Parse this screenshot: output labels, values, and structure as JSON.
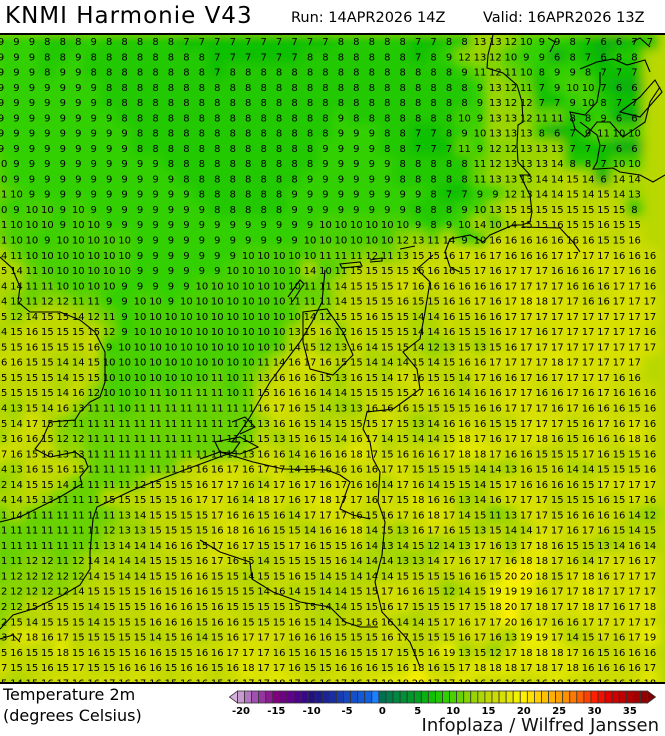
{
  "header": {
    "title": "KNMI Harmonie V43",
    "run": "Run: 14APR2026 14Z",
    "valid": "Valid: 16APR2026 13Z"
  },
  "map": {
    "field": "Temperature 2m",
    "watermark": "Infoplaza / Wilfred Janssen",
    "rows": [
      "9 9 9 8 8 8 9 8 8 8 8 8 7 7 7 7 7 7 7 7 7 7 8 8 8 8 8 7 7 8 8 13 13 12 10 9 9 8 7 6 6 7 7",
      "9 9 9 8 8 9 8 8 8 8 8 8 8 8 7 7 7 7 7 7 8 8 8 8 8 8 8 7 8 9 12 13 12 10 9 9 6 8 7 6 8 8",
      "9 9 9 8 9 9 8 8 8 8 8 8 8 8 7 8 8 8 8 8 8 8 8 8 8 8 8 8 8 8 9 11 12 11 10 8 9 9 8 7 7 7",
      "9 9 9 9 9 9 9 8 8 8 8 8 8 8 8 8 8 8 8 8 8 8 8 8 8 8 8 8 8 8 8 9 13 12 11 7 9 10 10 7 6 6",
      "9 9 9 9 9 9 9 8 8 8 8 8 8 8 8 8 8 8 8 8 8 8 8 8 8 8 8 8 8 8 8 9 13 12 12 7 7 9 10 8 7 7",
      "9 9 9 9 9 9 9 9 8 8 8 8 8 8 8 8 8 8 8 8 8 8 9 8 8 8 8 8 8 8 10 9 13 13 12 11 11 8 8 9 6 6",
      "9 9 9 9 9 9 9 9 9 8 8 8 8 8 8 8 8 8 8 8 8 8 9 9 9 8 8 7 7 8 9 10 13 13 13 8 6 7 9 11 10 10",
      "9 9 9 9 9 9 9 9 9 8 8 8 8 8 8 8 8 8 8 8 8 9 9 9 9 8 8 7 7 7 11 9 12 12 13 13 13 7 7 7 6 6",
      "10 9 9 9 9 9 9 9 9 9 9 8 8 8 8 8 8 8 8 8 8 9 9 9 9 9 8 8 8 8 8 11 12 13 13 13 14 8 8 7 10 10",
      "10 9 9 9 9 9 9 9 9 9 9 9 8 8 8 8 8 8 8 8 9 9 9 9 9 9 8 8 8 8 8 11 13 13 13 14 14 15 14 6 14 14",
      "11 10 9 9 9 9 9 9 9 9 9 9 9 8 8 8 8 8 8 9 9 9 9 9 9 9 9 9 8 7 7 9 9 12 13 14 14 15 14 15 14 13",
      "10 9 10 10 9 10 9 9 9 9 9 9 9 9 8 8 8 8 8 9 9 9 9 9 9 9 9 8 8 8 9 10 13 15 15 15 15 15 15 15 15 8",
      "11 10 10 10 9 10 10 9 9 9 9 9 9 9 9 9 9 9 9 9 9 10 10 10 10 10 10 9 8 9 10 14 10 14 15 15 16 15 15 16 15 15",
      "11 10 10 9 10 10 10 10 10 9 9 9 9 9 9 9 9 9 9 9 10 10 10 10 10 10 12 13 11 14 9 10 16 16 16 16 16 16 16 15 15 16",
      "14 11 10 10 10 10 10 10 10 9 9 9 9 9 9 9 10 10 10 10 10 11 11 11 12 11 13 15 15 16 17 16 17 16 16 16 17 17 17 17 16 16 16",
      "15 14 11 10 10 10 10 10 10 9 9 9 9 9 9 10 10 10 10 10 14 10 11 15 15 15 15 16 16 16 15 17 16 17 17 17 16 16 16 17 17 16 16",
      "14 14 11 11 10 10 10 10 9 9 9 9 9 10 10 10 10 10 10 10 11 11 14 15 15 15 17 16 16 16 16 16 16 17 17 17 17 16 16 16 17 17 16",
      "14 12 11 12 12 11 11 9 9 10 10 9 10 10 10 10 10 10 10 11 11 11 14 15 15 15 16 15 15 16 16 17 16 17 18 18 17 17 16 16 17 17 17",
      "15 12 14 15 15 14 12 11 9 10 10 10 10 10 10 10 10 10 10 10 14 12 15 15 16 15 15 14 14 16 15 16 16 17 17 17 17 17 17 17 17 17 17",
      "14 15 16 15 15 15 15 12 9 10 10 10 10 10 10 10 10 10 10 13 15 16 12 16 15 15 15 14 14 16 15 15 16 17 17 16 17 17 17 17 17 17 16",
      "15 15 16 15 15 15 16 9 10 10 10 10 10 10 10 10 10 10 10 14 15 12 13 16 14 15 15 14 12 13 15 13 15 16 17 17 17 17 17 17 17 17 17",
      "16 16 15 15 14 14 15 10 10 10 10 10 10 10 10 10 10 11 14 16 17 16 15 15 14 14 14 15 14 15 16 16 17 17 17 17 18 17 17 17 17 17",
      "15 15 15 15 14 15 15 10 10 10 10 10 10 10 11 10 11 13 16 16 16 15 13 16 15 14 17 16 15 15 14 17 16 16 17 16 17 17 17 17 16 16",
      "15 15 15 15 14 16 12 10 10 10 11 10 11 11 11 10 11 15 16 16 16 14 14 15 15 15 15 17 16 16 14 16 16 17 17 16 16 17 16 17 16 16 16",
      "14 13 15 14 16 13 11 11 10 11 11 11 11 11 11 11 11 16 17 16 15 14 13 13 16 16 16 15 15 15 15 16 16 17 17 17 16 17 16 16 16 15 16",
      "15 14 17 15 12 11 11 11 11 11 11 11 11 11 11 11 11 13 16 16 15 14 15 15 15 17 15 13 14 16 16 16 15 15 17 17 17 15 16 17 16 17 16",
      "13 16 16 15 12 12 11 11 11 11 11 11 11 11 11 11 11 15 13 15 16 15 14 16 17 14 15 14 14 15 18 17 16 17 17 18 16 15 16 16 16 18 16",
      "17 16 15 16 13 13 11 11 11 11 11 11 11 11 11 11 13 16 16 14 16 16 16 18 17 15 16 16 16 17 18 18 17 16 16 15 15 15 17 16 15 15 16",
      "14 13 16 15 16 15 11 11 11 11 11 11 15 16 16 17 16 17 17 14 15 16 16 16 16 17 17 15 15 15 15 14 14 13 16 15 16 14 14 15 15 15 16",
      "12 14 15 15 14 11 11 11 11 12 15 15 15 16 17 17 16 14 17 16 17 16 17 16 16 14 17 16 14 15 15 14 15 17 16 16 16 16 15 17 17 17 17",
      "14 14 15 13 11 11 11 15 15 15 15 15 16 17 17 16 14 18 17 16 17 18 17 17 16 17 15 18 16 16 13 14 16 17 17 17 15 15 15 16 15 17 16",
      "11 14 11 11 11 11 11 11 13 14 15 15 15 15 17 16 16 15 16 14 17 17 17 16 15 16 17 16 18 17 14 15 11 13 17 17 15 16 16 16 16 14 12",
      "11 11 11 11 11 11 11 12 13 13 15 15 15 15 16 18 16 16 15 15 14 16 16 18 14 15 13 16 17 16 15 13 15 14 14 17 17 16 17 16 15 14 15",
      "11 11 11 11 11 11 11 13 14 14 14 16 16 15 17 16 17 15 15 17 16 15 15 16 14 13 14 15 12 14 13 17 16 13 17 18 16 15 15 13 14 16 14",
      "11 11 12 12 11 12 14 14 14 14 15 15 15 16 17 16 15 14 15 15 15 15 16 14 14 14 13 13 14 17 16 17 17 16 18 18 17 16 14 17 17 16 17",
      "11 12 12 12 12 12 14 15 14 14 15 15 16 16 15 15 14 15 15 16 15 14 15 14 14 14 15 15 15 15 16 16 15 20 20 18 15 17 18 16 17 17 17",
      "12 12 12 12 12 14 15 15 15 15 16 15 16 16 15 15 15 14 16 14 15 14 14 15 15 17 16 16 15 12 14 15 19 19 19 16 17 17 18 17 17 17 17",
      "12 12 15 15 15 15 14 15 15 15 16 16 16 15 16 15 15 15 15 15 15 14 14 15 15 16 17 15 15 15 17 15 18 20 17 18 17 17 18 17 16 17 18",
      "12 15 14 15 15 15 14 15 15 15 16 16 16 15 16 16 15 15 15 16 15 14 15 15 16 16 14 14 15 17 16 17 17 20 16 17 16 16 17 17 17 17 17",
      "13 17 18 16 17 15 15 15 15 15 14 15 16 14 15 16 17 17 17 16 16 16 15 15 15 16 17 15 15 15 16 17 16 13 19 19 17 14 15 17 16 17 19",
      "15 16 15 15 18 15 16 15 15 16 16 15 15 16 16 17 17 17 16 15 16 15 16 15 15 17 15 15 16 19 13 15 12 17 18 18 18 17 16 15 16 16 16",
      "17 15 15 16 15 17 15 15 16 16 16 15 16 16 15 16 18 17 17 16 15 15 16 16 16 15 16 18 16 15 17 18 18 18 17 18 17 18 16 16 16 16 17",
      "15 14 15 16 17 16 16 17 16 17 16 15 16 16 15 16 17 17 18 17 16 16 17 16 17 18 18 20 17 17 18 16 16 16 16 16 18 16 16 16 16 16 18"
    ]
  },
  "legend": {
    "title_line1": "Temperature 2m",
    "title_line2": "(degrees Celsius)",
    "min": -20,
    "max": 37,
    "ticks": [
      "-20",
      "-15",
      "-10",
      "-5",
      "0",
      "5",
      "10",
      "15",
      "20",
      "25",
      "30",
      "35"
    ],
    "color_stops": [
      [
        -21,
        "#d8b0e0"
      ],
      [
        -20,
        "#c89bd0"
      ],
      [
        -18,
        "#a050b0"
      ],
      [
        -15,
        "#800080"
      ],
      [
        -12,
        "#500090"
      ],
      [
        -10,
        "#201080"
      ],
      [
        -7,
        "#1a2ea0"
      ],
      [
        -5,
        "#1848c0"
      ],
      [
        -2,
        "#1060e0"
      ],
      [
        -1,
        "#1a80ff"
      ],
      [
        0,
        "#007050"
      ],
      [
        2,
        "#008840"
      ],
      [
        5,
        "#00a020"
      ],
      [
        7,
        "#10c000"
      ],
      [
        9,
        "#30d000"
      ],
      [
        10,
        "#48d000"
      ],
      [
        12,
        "#88d400"
      ],
      [
        15,
        "#c0d800"
      ],
      [
        17,
        "#d8e000"
      ],
      [
        19,
        "#f0f000"
      ],
      [
        20,
        "#fff000"
      ],
      [
        22,
        "#ffd000"
      ],
      [
        24,
        "#ffb000"
      ],
      [
        26,
        "#ff9000"
      ],
      [
        28,
        "#ff6000"
      ],
      [
        30,
        "#ff2000"
      ],
      [
        32,
        "#e00000"
      ],
      [
        35,
        "#b00000"
      ],
      [
        38,
        "#800000"
      ]
    ]
  }
}
